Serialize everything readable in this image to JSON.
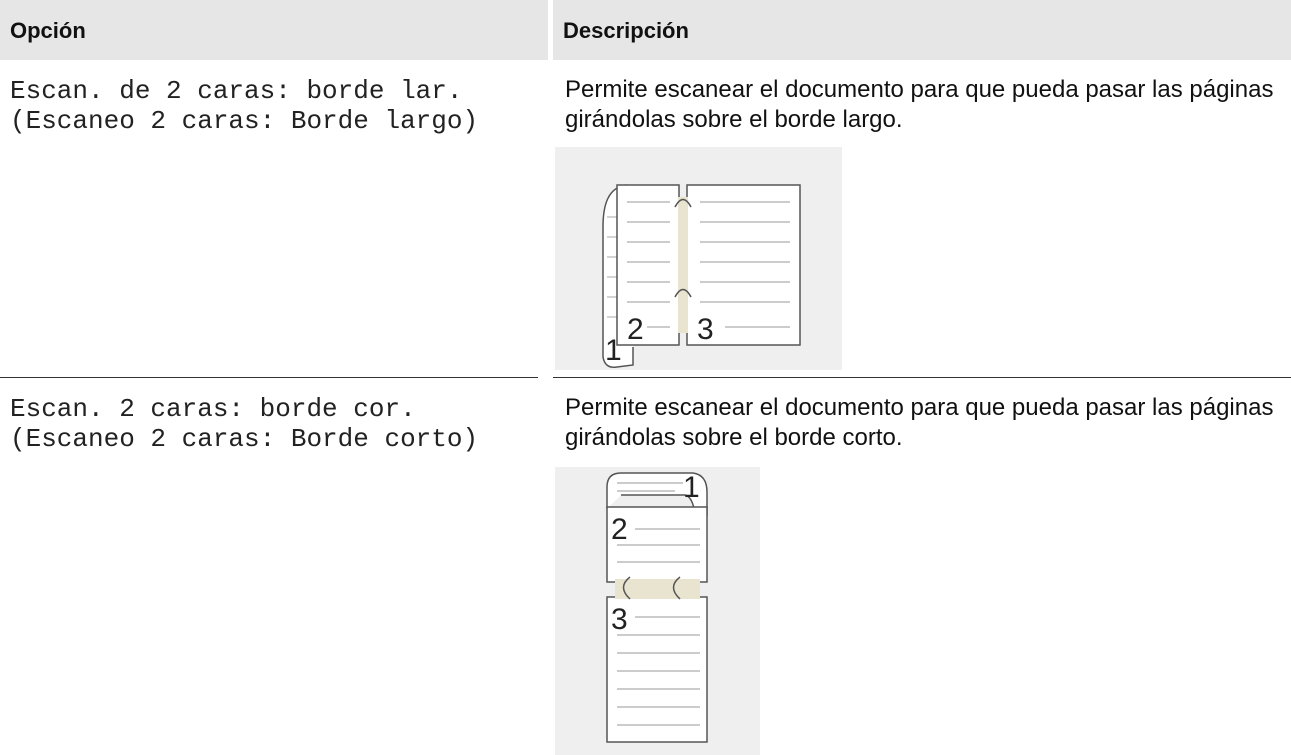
{
  "table": {
    "headers": [
      "Opción",
      "Descripción"
    ],
    "rows": [
      {
        "option": [
          "Escan. de 2 caras: borde lar.",
          "(Escaneo 2 caras: Borde largo)"
        ],
        "description": "Permite escanear el documento para que pueda pasar las páginas girándolas sobre el borde largo.",
        "figure_pages": [
          "1",
          "2",
          "3"
        ]
      },
      {
        "option": [
          "Escan. 2 caras: borde cor.",
          "(Escaneo 2 caras: Borde corto)"
        ],
        "description": "Permite escanear el documento para que pueda pasar las páginas girándolas sobre el borde corto.",
        "figure_pages": [
          "1",
          "2",
          "3"
        ]
      }
    ]
  }
}
